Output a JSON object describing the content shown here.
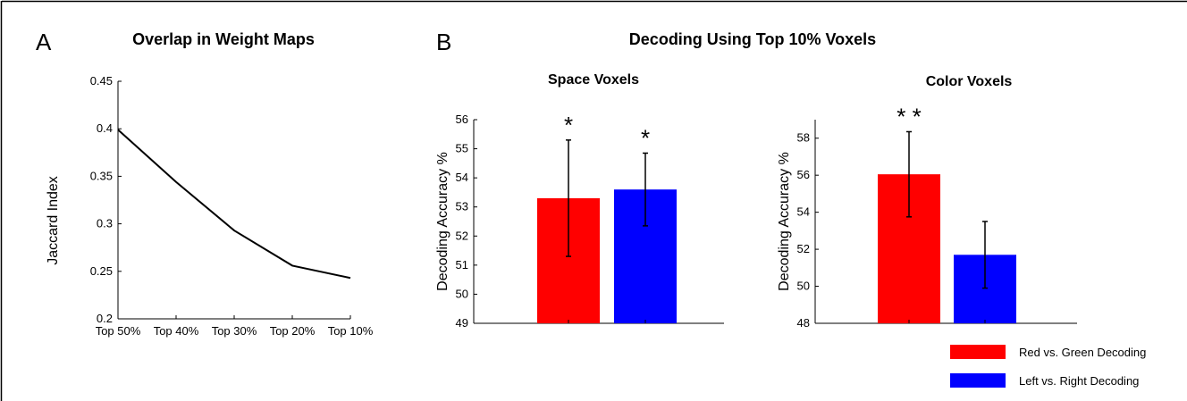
{
  "panel_a_letter": "A",
  "panel_b_letter": "B",
  "panel_b_title": "Decoding Using Top 10% Voxels",
  "legend": [
    {
      "label": "Red vs. Green Decoding",
      "color": "#ff0000"
    },
    {
      "label": "Left vs. Right Decoding",
      "color": "#0000ff"
    }
  ],
  "chart_data": [
    {
      "type": "line",
      "title": "Overlap in Weight Maps",
      "xlabel": "",
      "ylabel": "Jaccard Index",
      "categories": [
        "Top 50%",
        "Top 40%",
        "Top 30%",
        "Top 20%",
        "Top 10%"
      ],
      "values": [
        0.399,
        0.344,
        0.293,
        0.256,
        0.243
      ],
      "ylim": [
        0.2,
        0.45
      ],
      "yticks": [
        "0.2",
        "0.25",
        "0.3",
        "0.35",
        "0.4",
        "0.45"
      ],
      "line_color": "#000000",
      "grid": false
    },
    {
      "type": "bar",
      "title": "Space Voxels",
      "ylabel": "Decoding Accuracy %",
      "categories": [
        "Red vs. Green Decoding",
        "Left vs. Right Decoding"
      ],
      "values": [
        53.3,
        53.6
      ],
      "errors": [
        2.0,
        1.25
      ],
      "significance": [
        "*",
        "*"
      ],
      "colors": [
        "#ff0000",
        "#0000ff"
      ],
      "ylim": [
        49,
        56
      ],
      "yticks": [
        "49",
        "50",
        "51",
        "52",
        "53",
        "54",
        "55",
        "56"
      ],
      "grid": false
    },
    {
      "type": "bar",
      "title": "Color Voxels",
      "ylabel": "Decoding Accuracy %",
      "categories": [
        "Red vs. Green Decoding",
        "Left vs. Right Decoding"
      ],
      "values": [
        56.05,
        51.7
      ],
      "errors": [
        2.3,
        1.8
      ],
      "significance": [
        "* *",
        ""
      ],
      "colors": [
        "#ff0000",
        "#0000ff"
      ],
      "ylim": [
        48,
        59
      ],
      "yticks": [
        "48",
        "50",
        "52",
        "54",
        "56",
        "58"
      ],
      "grid": false
    }
  ]
}
